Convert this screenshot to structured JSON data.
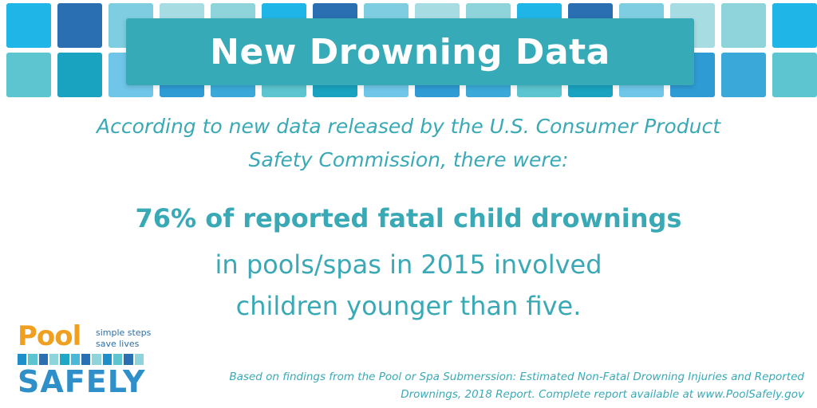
{
  "title": "New Drowning Data",
  "intro": {
    "line1": "According to new data  released by the U.S. Consumer Product",
    "line2": "Safety Commission, there were:"
  },
  "stat": {
    "highlight": "76% of reported fatal child drownings",
    "line2": "in pools/spas in 2015 involved",
    "line3": "children younger than five."
  },
  "logo": {
    "word1": "Pool",
    "tagline1": "simple steps",
    "tagline2": "save lives",
    "word2": "SAFELY"
  },
  "footnote": {
    "line1": "Based on findings from the Pool or Spa Submerssion: Estimated Non-Fatal Drowning Injuries and Reported",
    "line2": "Drownings, 2018 Report. Complete report available at www.PoolSafely.gov"
  },
  "colors": {
    "accent": "#3aa9b6",
    "banner": "#37aab8",
    "logo_orange": "#f0a020",
    "logo_blue": "#2f8fc8"
  }
}
